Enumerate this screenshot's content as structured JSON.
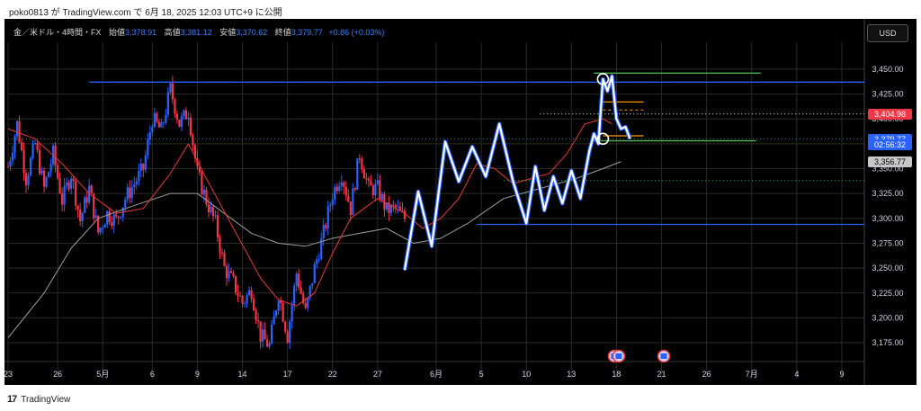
{
  "header": {
    "credit": "poko0813 が TradingView.com で 6月 18, 2025 12:03 UTC+9 に公開"
  },
  "legend": {
    "symbol": "金／米ドル・4時間・FX",
    "open_label": "始値",
    "open": "3,378.91",
    "high_label": "高値",
    "high": "3,381.12",
    "low_label": "安値",
    "low": "3,370.62",
    "close_label": "終値",
    "close": "3,379.77",
    "change": "+0.86 (+0.03%)"
  },
  "currency_button": "USD",
  "footer": {
    "brand": "TradingView",
    "logo_mark": "17"
  },
  "price_tags": [
    {
      "value": 3404.98,
      "text": "3,404.98",
      "bg": "#f23645",
      "fg": "#ffffff"
    },
    {
      "value": 3379.77,
      "text": "3,379.77",
      "bg": "#2962ff",
      "fg": "#ffffff"
    },
    {
      "value": 3374.0,
      "text": "02:56:32",
      "bg": "#2962ff",
      "fg": "#ffffff"
    },
    {
      "value": 3356.77,
      "text": "3,356.77",
      "bg": "#c8c8c8",
      "fg": "#000000"
    }
  ],
  "colors": {
    "up": "#2962ff",
    "down": "#f23645",
    "ma_fast": "#e53935",
    "ma_slow": "#9e9e9e",
    "zigzag": "#ffffff",
    "zigzag_shadow": "#2962ff",
    "grid": "#2a2a2a"
  },
  "chart_data": {
    "type": "candlestick",
    "timeframe": "4h",
    "y_axis": {
      "ylim": [
        3157,
        3468
      ],
      "ticks": [
        3175,
        3200,
        3225,
        3250,
        3275,
        3300,
        3325,
        3350,
        3375,
        3400,
        3425,
        3450
      ],
      "tick_labels": [
        "3,175.00",
        "3,200.00",
        "3,225.00",
        "3,250.00",
        "3,275.00",
        "3,300.00",
        "3,325.00",
        "3,350.00",
        "3,375.00",
        "3,400.00",
        "3,425.00",
        "3,450.00"
      ]
    },
    "x_axis": {
      "range": [
        0,
        190
      ],
      "ticks": [
        {
          "x": 0,
          "label": "23"
        },
        {
          "x": 11,
          "label": "26"
        },
        {
          "x": 21,
          "label": "5月"
        },
        {
          "x": 32,
          "label": "6"
        },
        {
          "x": 42,
          "label": "9"
        },
        {
          "x": 52,
          "label": "14"
        },
        {
          "x": 62,
          "label": "17"
        },
        {
          "x": 72,
          "label": "22"
        },
        {
          "x": 82,
          "label": "27"
        },
        {
          "x": 95,
          "label": "6月"
        },
        {
          "x": 105,
          "label": "5"
        },
        {
          "x": 115,
          "label": "10"
        },
        {
          "x": 125,
          "label": "13"
        },
        {
          "x": 135,
          "label": "18"
        },
        {
          "x": 145,
          "label": "21"
        },
        {
          "x": 155,
          "label": "26"
        },
        {
          "x": 165,
          "label": "7月"
        },
        {
          "x": 175,
          "label": "4"
        },
        {
          "x": 185,
          "label": "9"
        }
      ]
    },
    "close_path": [
      [
        0,
        3352
      ],
      [
        2,
        3395
      ],
      [
        4,
        3340
      ],
      [
        6,
        3375
      ],
      [
        8,
        3330
      ],
      [
        10,
        3365
      ],
      [
        12,
        3318
      ],
      [
        14,
        3345
      ],
      [
        16,
        3298
      ],
      [
        18,
        3330
      ],
      [
        20,
        3286
      ],
      [
        22,
        3305
      ],
      [
        24,
        3298
      ],
      [
        26,
        3320
      ],
      [
        28,
        3335
      ],
      [
        30,
        3350
      ],
      [
        32,
        3400
      ],
      [
        34,
        3388
      ],
      [
        36,
        3430
      ],
      [
        38,
        3395
      ],
      [
        40,
        3408
      ],
      [
        42,
        3345
      ],
      [
        44,
        3318
      ],
      [
        46,
        3295
      ],
      [
        48,
        3250
      ],
      [
        50,
        3235
      ],
      [
        52,
        3215
      ],
      [
        54,
        3228
      ],
      [
        56,
        3182
      ],
      [
        58,
        3172
      ],
      [
        60,
        3225
      ],
      [
        62,
        3182
      ],
      [
        64,
        3245
      ],
      [
        66,
        3205
      ],
      [
        68,
        3250
      ],
      [
        70,
        3285
      ],
      [
        72,
        3325
      ],
      [
        74,
        3345
      ],
      [
        76,
        3310
      ],
      [
        78,
        3365
      ],
      [
        80,
        3330
      ],
      [
        82,
        3330
      ],
      [
        84,
        3308
      ],
      [
        86,
        3310
      ],
      [
        88,
        3300
      ]
    ],
    "ma_fast": [
      [
        0,
        3390
      ],
      [
        6,
        3380
      ],
      [
        12,
        3355
      ],
      [
        18,
        3325
      ],
      [
        24,
        3305
      ],
      [
        30,
        3310
      ],
      [
        36,
        3345
      ],
      [
        40,
        3375
      ],
      [
        44,
        3340
      ],
      [
        50,
        3290
      ],
      [
        56,
        3240
      ],
      [
        60,
        3218
      ],
      [
        64,
        3212
      ],
      [
        68,
        3225
      ],
      [
        72,
        3265
      ],
      [
        76,
        3300
      ],
      [
        82,
        3320
      ],
      [
        88,
        3305
      ],
      [
        92,
        3290
      ],
      [
        96,
        3300
      ],
      [
        100,
        3320
      ],
      [
        104,
        3355
      ],
      [
        108,
        3350
      ],
      [
        112,
        3335
      ],
      [
        116,
        3340
      ],
      [
        120,
        3345
      ],
      [
        124,
        3365
      ],
      [
        128,
        3395
      ],
      [
        132,
        3400
      ],
      [
        134,
        3395
      ]
    ],
    "ma_slow": [
      [
        0,
        3180
      ],
      [
        8,
        3225
      ],
      [
        14,
        3270
      ],
      [
        20,
        3300
      ],
      [
        28,
        3313
      ],
      [
        36,
        3325
      ],
      [
        42,
        3325
      ],
      [
        48,
        3305
      ],
      [
        54,
        3285
      ],
      [
        60,
        3275
      ],
      [
        66,
        3272
      ],
      [
        72,
        3280
      ],
      [
        78,
        3285
      ],
      [
        84,
        3290
      ],
      [
        90,
        3275
      ],
      [
        96,
        3280
      ],
      [
        102,
        3295
      ],
      [
        110,
        3320
      ],
      [
        118,
        3330
      ],
      [
        126,
        3340
      ],
      [
        132,
        3350
      ],
      [
        136,
        3357
      ]
    ],
    "zigzag": [
      [
        88,
        3248
      ],
      [
        91,
        3327
      ],
      [
        94,
        3272
      ],
      [
        97,
        3377
      ],
      [
        100,
        3337
      ],
      [
        103,
        3372
      ],
      [
        106,
        3342
      ],
      [
        109,
        3395
      ],
      [
        112,
        3338
      ],
      [
        115,
        3295
      ],
      [
        117,
        3352
      ],
      [
        119,
        3308
      ],
      [
        121,
        3342
      ],
      [
        123,
        3315
      ],
      [
        125,
        3348
      ],
      [
        127,
        3320
      ],
      [
        129,
        3368
      ],
      [
        130,
        3385
      ],
      [
        131,
        3375
      ],
      [
        132,
        3440
      ],
      [
        133,
        3428
      ],
      [
        134,
        3443
      ],
      [
        135,
        3400
      ],
      [
        136,
        3390
      ],
      [
        137,
        3392
      ],
      [
        138,
        3380
      ]
    ],
    "circle_marks": [
      [
        132,
        3440
      ],
      [
        132,
        3380
      ]
    ],
    "h_levels": [
      {
        "x1": 18,
        "x2": 190,
        "y": 3437,
        "color": "#2962ff",
        "style": "solid"
      },
      {
        "x1": 104,
        "x2": 190,
        "y": 3294,
        "color": "#2962ff",
        "style": "solid"
      },
      {
        "x1": 130,
        "x2": 167,
        "y": 3446,
        "color": "#4caf50",
        "style": "solid"
      },
      {
        "x1": 130,
        "x2": 166,
        "y": 3378,
        "color": "#4caf50",
        "style": "solid"
      },
      {
        "x1": 132,
        "x2": 141,
        "y": 3417,
        "color": "#ff9800",
        "style": "solid"
      },
      {
        "x1": 132,
        "x2": 141,
        "y": 3409,
        "color": "#ff9800",
        "style": "dashed"
      },
      {
        "x1": 132,
        "x2": 141,
        "y": 3383,
        "color": "#ff9800",
        "style": "solid"
      },
      {
        "x1": 118,
        "x2": 190,
        "y": 3404.98,
        "color": "#ffffff",
        "style": "dotted"
      },
      {
        "x1": 0,
        "x2": 190,
        "y": 3379.77,
        "color": "#2962ff",
        "style": "dotted"
      },
      {
        "x1": 110,
        "x2": 190,
        "y": 3338,
        "color": "#4caf50",
        "style": "dotted"
      }
    ],
    "event_icons": [
      {
        "x": 134.5
      },
      {
        "x": 135.5
      },
      {
        "x": 145.5
      }
    ]
  }
}
